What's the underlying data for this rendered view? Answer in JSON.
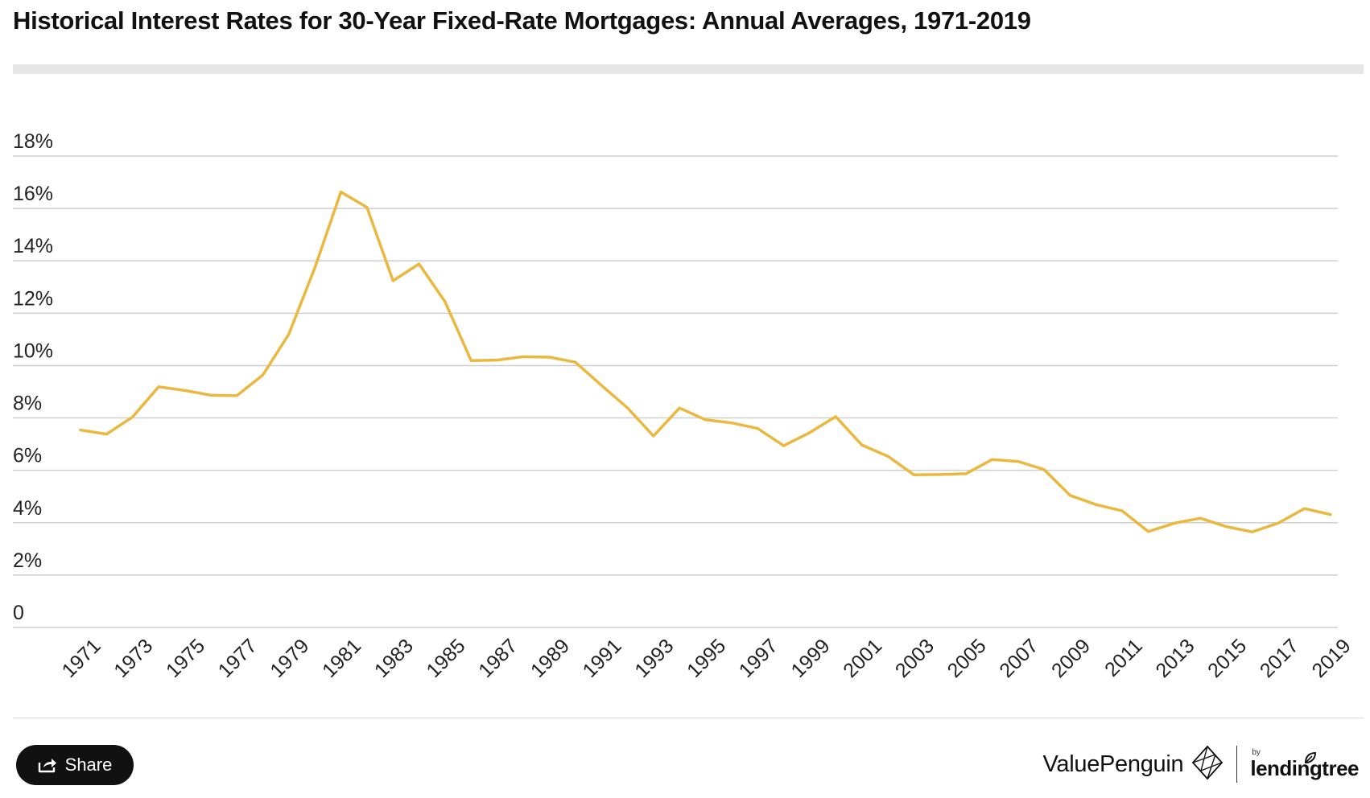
{
  "header": {
    "title": "Historical Interest Rates for 30-Year Fixed-Rate Mortgages: Annual Averages, 1971-2019"
  },
  "footer": {
    "share_label": "Share",
    "brand_name": "ValuePenguin",
    "partner_by": "by",
    "partner_name": "lendingtree"
  },
  "colors": {
    "line": "#eab83e",
    "grid": "#cfcfcf",
    "text": "#222222"
  },
  "chart_data": {
    "type": "line",
    "title": "Historical Interest Rates for 30-Year Fixed-Rate Mortgages: Annual Averages, 1971-2019",
    "xlabel": "",
    "ylabel": "",
    "ylim": [
      0,
      18
    ],
    "y_ticks": [
      0,
      2,
      4,
      6,
      8,
      10,
      12,
      14,
      16,
      18
    ],
    "y_tick_labels": [
      "0",
      "2%",
      "4%",
      "6%",
      "8%",
      "10%",
      "12%",
      "14%",
      "16%",
      "18%"
    ],
    "x_tick_labels": [
      "1971",
      "1973",
      "1975",
      "1977",
      "1979",
      "1981",
      "1983",
      "1985",
      "1987",
      "1989",
      "1991",
      "1993",
      "1995",
      "1997",
      "1999",
      "2001",
      "2003",
      "2005",
      "2007",
      "2009",
      "2011",
      "2013",
      "2015",
      "2017",
      "2019"
    ],
    "grid": true,
    "legend": "none",
    "x": [
      1971,
      1972,
      1973,
      1974,
      1975,
      1976,
      1977,
      1978,
      1979,
      1980,
      1981,
      1982,
      1983,
      1984,
      1985,
      1986,
      1987,
      1988,
      1989,
      1990,
      1991,
      1992,
      1993,
      1994,
      1995,
      1996,
      1997,
      1998,
      1999,
      2000,
      2001,
      2002,
      2003,
      2004,
      2005,
      2006,
      2007,
      2008,
      2009,
      2010,
      2011,
      2012,
      2013,
      2014,
      2015,
      2016,
      2017,
      2018,
      2019
    ],
    "series": [
      {
        "values": [
          7.54,
          7.38,
          8.04,
          9.19,
          9.05,
          8.87,
          8.85,
          9.64,
          11.2,
          13.74,
          16.63,
          16.04,
          13.24,
          13.88,
          12.43,
          10.19,
          10.21,
          10.34,
          10.32,
          10.13,
          9.25,
          8.39,
          7.31,
          8.38,
          7.93,
          7.81,
          7.6,
          6.94,
          7.44,
          8.05,
          6.97,
          6.54,
          5.83,
          5.84,
          5.87,
          6.41,
          6.34,
          6.03,
          5.04,
          4.69,
          4.45,
          3.66,
          3.98,
          4.17,
          3.85,
          3.65,
          3.99,
          4.54,
          4.31
        ]
      }
    ]
  }
}
